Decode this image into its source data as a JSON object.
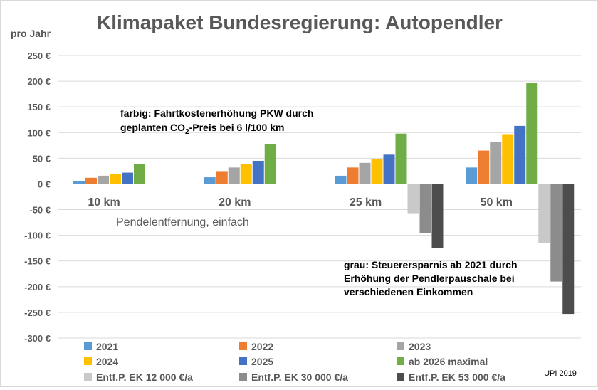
{
  "chart_data": {
    "type": "bar",
    "title": "Klimapaket Bundesregierung: Autopendler",
    "ylabel": "pro Jahr",
    "xlabel": "Pendelentfernung, einfach",
    "ylim": [
      -300,
      250
    ],
    "y_ticks": [
      250,
      200,
      150,
      100,
      50,
      0,
      -50,
      -100,
      -150,
      -200,
      -250,
      -300
    ],
    "y_tick_suffix": " €",
    "grid": true,
    "legend_position": "bottom",
    "categories": [
      "10 km",
      "20 km",
      "25 km",
      "50 km"
    ],
    "series": [
      {
        "name": "2021",
        "color": "#5b9bd5",
        "values": [
          6,
          13,
          16,
          32
        ]
      },
      {
        "name": "2022",
        "color": "#ed7d31",
        "values": [
          12,
          25,
          32,
          65
        ]
      },
      {
        "name": "2023",
        "color": "#a5a5a5",
        "values": [
          16,
          32,
          41,
          81
        ]
      },
      {
        "name": "2024",
        "color": "#ffc000",
        "values": [
          19,
          39,
          49,
          97
        ]
      },
      {
        "name": "2025",
        "color": "#4472c4",
        "values": [
          22,
          45,
          57,
          113
        ]
      },
      {
        "name": "ab 2026 maximal",
        "color": "#70ad47",
        "values": [
          39,
          78,
          98,
          196
        ]
      },
      {
        "name": "Entf.P. EK 12 000 €/a",
        "color": "#c9c9c9",
        "values": [
          0,
          0,
          -57,
          -115
        ]
      },
      {
        "name": "Entf.P. EK 30 000 €/a",
        "color": "#8c8c8c",
        "values": [
          0,
          0,
          -95,
          -190
        ]
      },
      {
        "name": "Entf.P. EK 53 000 €/a",
        "color": "#4d4d4d",
        "values": [
          0,
          0,
          -125,
          -253
        ]
      }
    ],
    "annotations": {
      "colored_line1": "farbig: Fahrtkostenerhöhung PKW durch",
      "colored_line2_a": "geplanten CO",
      "colored_line2_sub": "2",
      "colored_line2_b": "-Preis bei 6 l/100 km",
      "grey_line1": "grau: Steuerersparnis ab 2021 durch",
      "grey_line2": "Erhöhung der Pendlerpauschale bei",
      "grey_line3": "verschiedenen Einkommen"
    },
    "credit": "UPI 2019"
  }
}
